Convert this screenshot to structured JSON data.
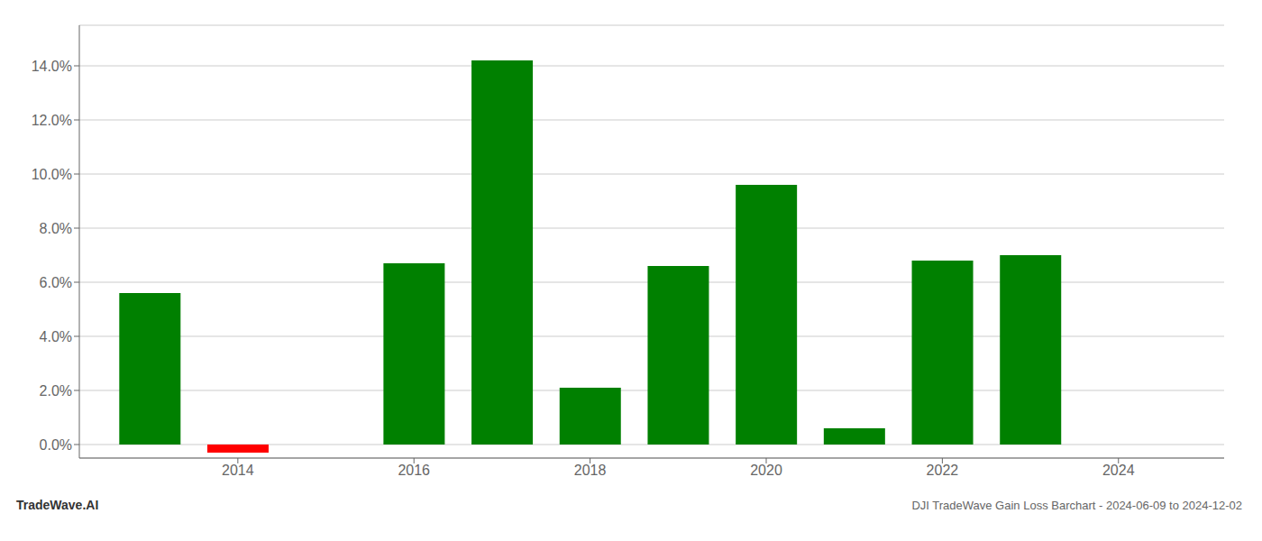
{
  "chart_data": {
    "type": "bar",
    "title": "DJI TradeWave Gain Loss Barchart - 2024-06-09 to 2024-12-02",
    "annotations": [
      "TradeWave.AI"
    ],
    "x": [
      2013,
      2014,
      2016,
      2017,
      2018,
      2019,
      2020,
      2021,
      2022,
      2023
    ],
    "values": [
      0.056,
      -0.003,
      0.067,
      0.142,
      0.021,
      0.066,
      0.096,
      0.006,
      0.068,
      0.07
    ],
    "colors": [
      "#008000",
      "#ff0000",
      "#008000",
      "#008000",
      "#008000",
      "#008000",
      "#008000",
      "#008000",
      "#008000",
      "#008000"
    ],
    "xlim": [
      2012.2,
      2025.2
    ],
    "xticks": [
      2014,
      2016,
      2018,
      2020,
      2022,
      2024
    ],
    "ylim": [
      -0.005,
      0.155
    ],
    "yticks": [
      {
        "value": 0.0,
        "label": "0.0%"
      },
      {
        "value": 0.02,
        "label": "2.0%"
      },
      {
        "value": 0.04,
        "label": "4.0%"
      },
      {
        "value": 0.06,
        "label": "6.0%"
      },
      {
        "value": 0.08,
        "label": "8.0%"
      },
      {
        "value": 0.1,
        "label": "10.0%"
      },
      {
        "value": 0.12,
        "label": "12.0%"
      },
      {
        "value": 0.14,
        "label": "14.0%"
      }
    ],
    "grid": true
  }
}
